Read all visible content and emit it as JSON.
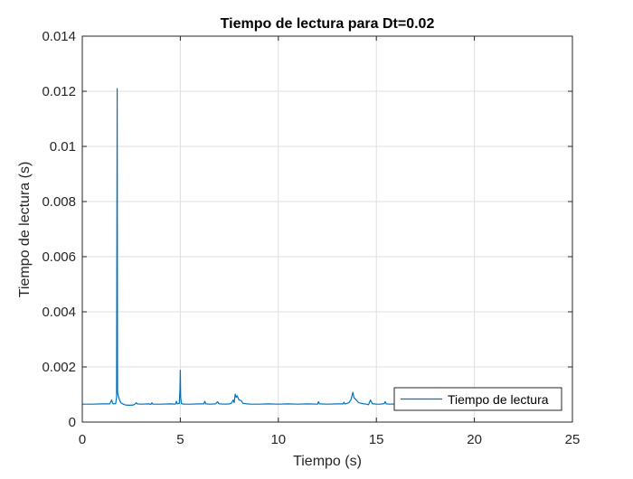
{
  "chart_data": {
    "type": "line",
    "title": "Tiempo de lectura para Dt=0.02",
    "xlabel": "Tiempo (s)",
    "ylabel": "Tiempo de lectura (s)",
    "xlim": [
      0,
      25
    ],
    "ylim": [
      0,
      0.014
    ],
    "x_ticks": [
      0,
      5,
      10,
      15,
      20,
      25
    ],
    "x_tick_labels": [
      "0",
      "5",
      "10",
      "15",
      "20",
      "25"
    ],
    "y_ticks": [
      0,
      0.002,
      0.004,
      0.006,
      0.008,
      0.01,
      0.012,
      0.014
    ],
    "y_tick_labels": [
      "0",
      "0.002",
      "0.004",
      "0.006",
      "0.008",
      "0.01",
      "0.012",
      "0.014"
    ],
    "grid": true,
    "legend_position": "bottom-right",
    "colors": {
      "series": "#0072BD",
      "grid": "#dfdfdf",
      "axis": "#262626"
    },
    "series": [
      {
        "name": "Tiempo de lectura",
        "x": [
          0,
          0.5,
          1.0,
          1.4,
          1.5,
          1.55,
          1.6,
          1.7,
          1.75,
          1.78,
          1.8,
          1.83,
          1.86,
          1.9,
          1.95,
          2.0,
          2.1,
          2.2,
          2.4,
          2.6,
          2.7,
          2.75,
          2.8,
          3.0,
          3.4,
          3.5,
          3.55,
          3.6,
          4.0,
          4.5,
          4.75,
          4.8,
          4.85,
          4.95,
          4.98,
          5.0,
          5.02,
          5.05,
          5.1,
          5.2,
          5.5,
          6.0,
          6.2,
          6.25,
          6.3,
          6.5,
          6.8,
          6.9,
          6.95,
          7.0,
          7.3,
          7.5,
          7.6,
          7.7,
          7.75,
          7.8,
          7.85,
          7.9,
          8.0,
          8.1,
          8.2,
          8.4,
          8.6,
          9.0,
          9.5,
          10.0,
          10.5,
          11.0,
          11.5,
          12.0,
          12.05,
          12.1,
          12.5,
          13.0,
          13.3,
          13.35,
          13.4,
          13.5,
          13.6,
          13.7,
          13.8,
          13.85,
          13.9,
          14.0,
          14.1,
          14.3,
          14.5,
          14.6,
          14.7,
          14.8,
          14.9,
          15.0,
          15.2,
          15.4,
          15.45,
          15.5,
          15.7,
          16.0,
          16.2
        ],
        "values": [
          0.00065,
          0.00065,
          0.00066,
          0.00066,
          0.0008,
          0.00068,
          0.00066,
          0.00067,
          0.0009,
          0.0121,
          0.0011,
          0.00095,
          0.0009,
          0.0008,
          0.00072,
          0.00068,
          0.00065,
          0.00062,
          0.00061,
          0.00062,
          0.00066,
          0.0007,
          0.00066,
          0.00065,
          0.00066,
          0.00064,
          0.0007,
          0.00065,
          0.00065,
          0.00066,
          0.00065,
          0.00075,
          0.00066,
          0.00068,
          0.0012,
          0.00188,
          0.0009,
          0.00068,
          0.00066,
          0.00065,
          0.00065,
          0.00066,
          0.00066,
          0.00075,
          0.00066,
          0.00065,
          0.00066,
          0.00074,
          0.00068,
          0.00066,
          0.00065,
          0.00066,
          0.00068,
          0.0008,
          0.0007,
          0.00101,
          0.0009,
          0.00095,
          0.0008,
          0.00078,
          0.00068,
          0.00066,
          0.00065,
          0.00065,
          0.00066,
          0.00065,
          0.00066,
          0.00065,
          0.00066,
          0.00065,
          0.00074,
          0.00066,
          0.00065,
          0.00066,
          0.00066,
          0.00072,
          0.00066,
          0.00068,
          0.0007,
          0.0008,
          0.00108,
          0.0009,
          0.00085,
          0.00078,
          0.0007,
          0.00067,
          0.00065,
          0.00063,
          0.0008,
          0.00066,
          0.00066,
          0.00065,
          0.00065,
          0.00067,
          0.00074,
          0.00066,
          0.00065,
          0.00066,
          0.00066
        ]
      }
    ]
  }
}
